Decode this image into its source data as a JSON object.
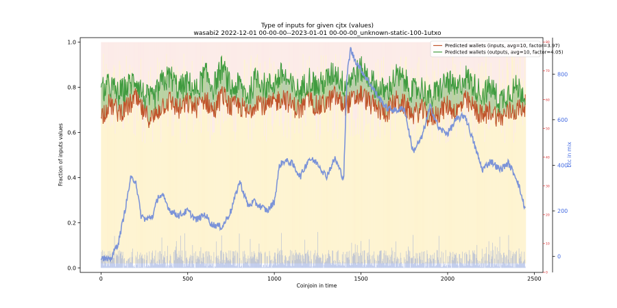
{
  "chart_data": {
    "type": "line",
    "title": "Type of inputs for given cjtx (values)",
    "subtitle": "wasabi2 2022-12-01 00-00-00--2023-01-01 00-00-00_unknown-static-100-1utxo",
    "xlabel": "Coinjoin in time",
    "ylabel": "Fraction of inputs values",
    "ylabel_right": "btc in mix",
    "xlim": [
      -120,
      2550
    ],
    "ylim": [
      -0.02,
      1.02
    ],
    "ylim_right_outer": [
      -0.02,
      81.5
    ],
    "ylim_right_blue": [
      -70,
      960
    ],
    "xticks": [
      "0",
      "500",
      "1000",
      "1500",
      "2000",
      "2500"
    ],
    "xtick_values": [
      0,
      500,
      1000,
      1500,
      2000,
      2500
    ],
    "yticks": [
      "0.0",
      "0.2",
      "0.4",
      "0.6",
      "0.8",
      "1.0"
    ],
    "ytick_values": [
      0.0,
      0.2,
      0.4,
      0.6,
      0.8,
      1.0
    ],
    "yticks_right_outer": [
      "0",
      "10",
      "20",
      "30",
      "40",
      "50",
      "60",
      "70",
      "80"
    ],
    "ytick_right_outer_values": [
      0,
      10,
      20,
      30,
      40,
      50,
      60,
      70,
      80
    ],
    "yticks_right_blue": [
      "0",
      "200",
      "400",
      "600",
      "800"
    ],
    "ytick_right_blue_values": [
      0,
      200,
      400,
      600,
      800
    ],
    "grid": false,
    "legend_position": "top-right",
    "colors": {
      "inputs": "#c0532a",
      "outputs": "#3f9b3f",
      "btc": "#7b93d8",
      "band_yellow": "#fde9a9",
      "band_pink": "#f8d2cd",
      "right_axis": "#d62728",
      "btc_axis": "#4169e1"
    },
    "series": [
      {
        "name": "Predicted wallets (inputs, avg=10, factor=3.97)",
        "x": [
          0,
          50,
          100,
          150,
          200,
          250,
          300,
          350,
          400,
          450,
          500,
          550,
          600,
          650,
          700,
          750,
          800,
          850,
          900,
          950,
          1000,
          1050,
          1100,
          1150,
          1200,
          1250,
          1300,
          1350,
          1400,
          1450,
          1500,
          1550,
          1600,
          1650,
          1700,
          1750,
          1800,
          1850,
          1900,
          1950,
          2000,
          2050,
          2100,
          2150,
          2200,
          2250,
          2300,
          2350,
          2400,
          2450
        ],
        "values": [
          0.67,
          0.73,
          0.69,
          0.71,
          0.75,
          0.68,
          0.66,
          0.72,
          0.74,
          0.7,
          0.73,
          0.71,
          0.75,
          0.69,
          0.77,
          0.71,
          0.72,
          0.68,
          0.75,
          0.71,
          0.73,
          0.76,
          0.72,
          0.7,
          0.75,
          0.71,
          0.73,
          0.76,
          0.72,
          0.74,
          0.77,
          0.73,
          0.7,
          0.69,
          0.74,
          0.72,
          0.68,
          0.7,
          0.66,
          0.69,
          0.72,
          0.69,
          0.74,
          0.71,
          0.67,
          0.7,
          0.66,
          0.69,
          0.7,
          0.72
        ]
      },
      {
        "name": "Predicted wallets (outputs, avg=10, factor=4.05)",
        "x": [
          0,
          50,
          100,
          150,
          200,
          250,
          300,
          350,
          400,
          450,
          500,
          550,
          600,
          650,
          700,
          750,
          800,
          850,
          900,
          950,
          1000,
          1050,
          1100,
          1150,
          1200,
          1250,
          1300,
          1350,
          1400,
          1450,
          1500,
          1550,
          1600,
          1650,
          1700,
          1750,
          1800,
          1850,
          1900,
          1950,
          2000,
          2050,
          2100,
          2150,
          2200,
          2250,
          2300,
          2350,
          2400,
          2450
        ],
        "values": [
          0.78,
          0.81,
          0.77,
          0.8,
          0.84,
          0.76,
          0.74,
          0.82,
          0.85,
          0.79,
          0.82,
          0.78,
          0.86,
          0.8,
          0.89,
          0.79,
          0.81,
          0.76,
          0.85,
          0.8,
          0.82,
          0.86,
          0.8,
          0.78,
          0.84,
          0.8,
          0.83,
          0.87,
          0.81,
          0.85,
          0.88,
          0.84,
          0.79,
          0.78,
          0.85,
          0.83,
          0.78,
          0.8,
          0.75,
          0.79,
          0.83,
          0.78,
          0.85,
          0.81,
          0.77,
          0.8,
          0.74,
          0.78,
          0.8,
          0.77
        ]
      },
      {
        "name": "btc in mix",
        "x": [
          0,
          50,
          100,
          130,
          150,
          170,
          200,
          230,
          260,
          300,
          330,
          360,
          400,
          450,
          500,
          550,
          600,
          640,
          700,
          750,
          800,
          850,
          880,
          920,
          960,
          1000,
          1030,
          1060,
          1100,
          1150,
          1200,
          1250,
          1300,
          1350,
          1400,
          1420,
          1440,
          1460,
          1500,
          1550,
          1600,
          1650,
          1700,
          1750,
          1800,
          1850,
          1900,
          1950,
          2000,
          2050,
          2100,
          2150,
          2200,
          2250,
          2300,
          2350,
          2400,
          2450
        ],
        "values": [
          0,
          -20,
          60,
          170,
          250,
          340,
          335,
          180,
          160,
          180,
          265,
          260,
          200,
          180,
          200,
          160,
          185,
          140,
          130,
          200,
          330,
          220,
          240,
          220,
          200,
          240,
          400,
          420,
          410,
          350,
          430,
          410,
          350,
          430,
          340,
          800,
          910,
          870,
          820,
          760,
          700,
          650,
          640,
          650,
          460,
          520,
          660,
          560,
          540,
          600,
          620,
          500,
          380,
          420,
          380,
          410,
          340,
          200
        ]
      }
    ]
  }
}
